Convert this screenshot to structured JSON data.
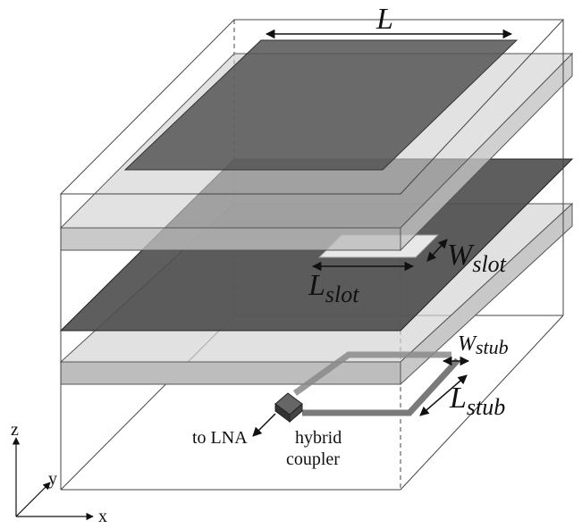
{
  "labels": {
    "patch_length": "L",
    "slot_width": {
      "main": "W",
      "sub": "slot"
    },
    "slot_length": {
      "main": "L",
      "sub": "slot"
    },
    "stub_width": {
      "main": "W",
      "sub": "stub"
    },
    "stub_length": {
      "main": "L",
      "sub": "stub"
    },
    "output": "to LNA",
    "coupler": [
      "hybrid",
      "coupler"
    ],
    "axes": {
      "z": "z",
      "y": "y",
      "x": "x"
    }
  }
}
